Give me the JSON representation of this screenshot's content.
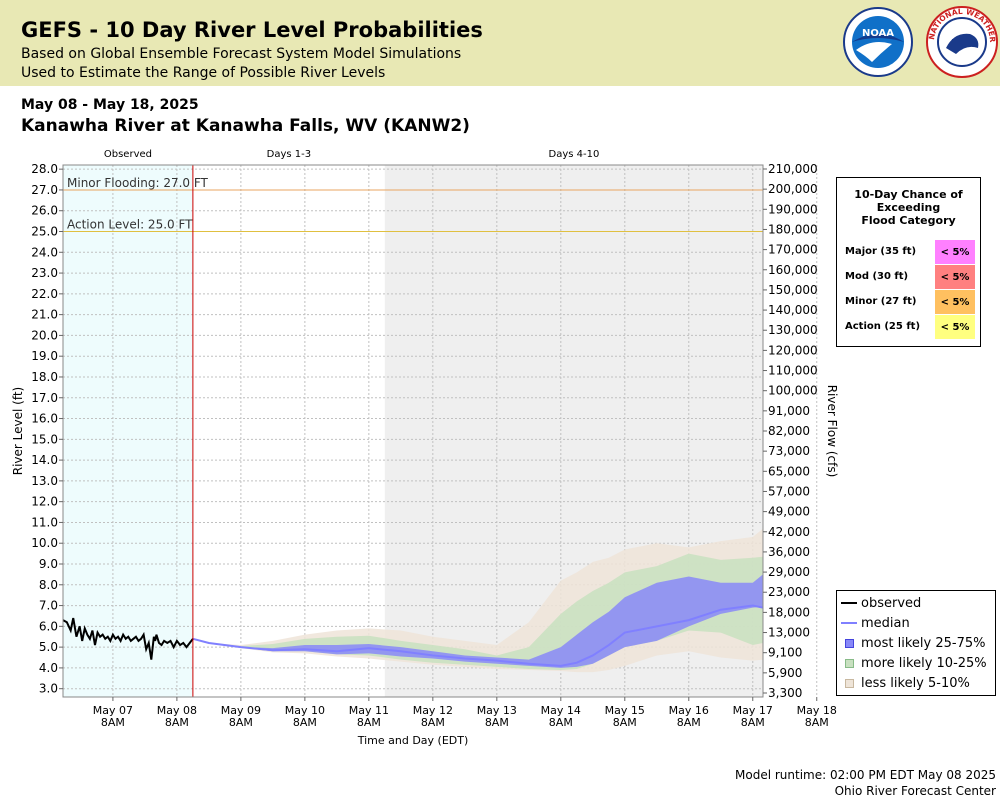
{
  "header": {
    "title": "GEFS - 10 Day River Level Probabilities",
    "subtitle1": "Based on Global Ensemble Forecast System Model Simulations",
    "subtitle2": "Used to Estimate the Range of Possible River Levels",
    "noaa_logo_text": "NOAA",
    "nws_logo_text": "NATIONAL WEATHER SERVICE"
  },
  "date_range": "May 08 - May 18, 2025",
  "station": "Kanawha River at Kanawha Falls, WV (KANW2)",
  "chart_data": {
    "type": "area",
    "title": "",
    "xlabel": "Time and Day (EDT)",
    "ylabel": "River Level (ft)",
    "y2label": "River Flow (cfs)",
    "ylim": [
      2.6,
      28.2
    ],
    "xlim": [
      -0.78,
      10.16
    ],
    "x_unit": "days since May 07 8AM",
    "y_ticks": [
      3.0,
      4.0,
      5.0,
      6.0,
      7.0,
      8.0,
      9.0,
      10.0,
      11.0,
      12.0,
      13.0,
      14.0,
      15.0,
      16.0,
      17.0,
      18.0,
      19.0,
      20.0,
      21.0,
      22.0,
      23.0,
      24.0,
      25.0,
      26.0,
      27.0,
      28.0
    ],
    "y_tick_labels": [
      "3.0",
      "4.0",
      "5.0",
      "6.0",
      "7.0",
      "8.0",
      "9.0",
      "10.0",
      "11.0",
      "12.0",
      "13.0",
      "14.0",
      "15.0",
      "16.0",
      "17.0",
      "18.0",
      "19.0",
      "20.0",
      "21.0",
      "22.0",
      "23.0",
      "24.0",
      "25.0",
      "26.0",
      "27.0",
      "28.0"
    ],
    "y2_ticks": [
      {
        "stage": 3.0,
        "label": "3,300"
      },
      {
        "stage": 4.0,
        "label": "5,900"
      },
      {
        "stage": 5.0,
        "label": "9,100"
      },
      {
        "stage": 6.0,
        "label": "13,000"
      },
      {
        "stage": 7.0,
        "label": "18,000"
      },
      {
        "stage": 8.0,
        "label": "23,000"
      },
      {
        "stage": 9.0,
        "label": "29,000"
      },
      {
        "stage": 10.0,
        "label": "36,000"
      },
      {
        "stage": 11.0,
        "label": "42,000"
      },
      {
        "stage": 12.0,
        "label": "49,000"
      },
      {
        "stage": 13.0,
        "label": "57,000"
      },
      {
        "stage": 14.0,
        "label": "65,000"
      },
      {
        "stage": 15.0,
        "label": "73,000"
      },
      {
        "stage": 16.0,
        "label": "82,000"
      },
      {
        "stage": 17.0,
        "label": "91,000"
      },
      {
        "stage": 18.0,
        "label": "100,000"
      },
      {
        "stage": 19.0,
        "label": "110,000"
      },
      {
        "stage": 20.0,
        "label": "120,000"
      },
      {
        "stage": 21.0,
        "label": "130,000"
      },
      {
        "stage": 22.0,
        "label": "140,000"
      },
      {
        "stage": 23.0,
        "label": "150,000"
      },
      {
        "stage": 24.0,
        "label": "160,000"
      },
      {
        "stage": 25.0,
        "label": "170,000"
      },
      {
        "stage": 26.0,
        "label": "180,000"
      },
      {
        "stage": 27.0,
        "label": "190,000"
      },
      {
        "stage": 28.0,
        "label": "200,000"
      },
      {
        "stage": 29.0,
        "label": "210,000"
      }
    ],
    "x_ticks": [
      {
        "day": 0,
        "line1": "May 07",
        "line2": "8AM"
      },
      {
        "day": 1,
        "line1": "May 08",
        "line2": "8AM"
      },
      {
        "day": 2,
        "line1": "May 09",
        "line2": "8AM"
      },
      {
        "day": 3,
        "line1": "May 10",
        "line2": "8AM"
      },
      {
        "day": 4,
        "line1": "May 11",
        "line2": "8AM"
      },
      {
        "day": 5,
        "line1": "May 12",
        "line2": "8AM"
      },
      {
        "day": 6,
        "line1": "May 13",
        "line2": "8AM"
      },
      {
        "day": 7,
        "line1": "May 14",
        "line2": "8AM"
      },
      {
        "day": 8,
        "line1": "May 15",
        "line2": "8AM"
      },
      {
        "day": 9,
        "line1": "May 16",
        "line2": "8AM"
      },
      {
        "day": 10,
        "line1": "May 17",
        "line2": "8AM"
      },
      {
        "day": 11,
        "line1": "May 18",
        "line2": "8AM"
      }
    ],
    "periods": [
      {
        "label": "Observed",
        "start": -0.78,
        "end": 1.25,
        "color": "#eefcfd"
      },
      {
        "label": "Days 1-3",
        "start": 1.25,
        "end": 4.25,
        "color": "#ffffff"
      },
      {
        "label": "Days 4-10",
        "start": 4.25,
        "end": 10.16,
        "color": "#efefef"
      }
    ],
    "forecast_start": 1.25,
    "thresholds": [
      {
        "label": "Minor Flooding: 27.0 FT",
        "value": 27.0,
        "color": "#e8a560"
      },
      {
        "label": "Action Level: 25.0 FT",
        "value": 25.0,
        "color": "#e0c040"
      }
    ],
    "observed": {
      "x": [
        -0.78,
        -0.72,
        -0.66,
        -0.62,
        -0.57,
        -0.52,
        -0.48,
        -0.44,
        -0.4,
        -0.36,
        -0.32,
        -0.28,
        -0.24,
        -0.2,
        -0.16,
        -0.12,
        -0.08,
        -0.04,
        0.0,
        0.04,
        0.08,
        0.12,
        0.16,
        0.2,
        0.24,
        0.28,
        0.32,
        0.36,
        0.4,
        0.44,
        0.48,
        0.52,
        0.56,
        0.6,
        0.64,
        0.66,
        0.68,
        0.72,
        0.76,
        0.8,
        0.85,
        0.9,
        0.95,
        1.0,
        1.05,
        1.1,
        1.15,
        1.2,
        1.25
      ],
      "y": [
        6.3,
        6.2,
        5.8,
        6.4,
        5.5,
        6.0,
        5.3,
        5.9,
        5.6,
        5.4,
        5.8,
        5.1,
        5.7,
        5.5,
        5.6,
        5.4,
        5.5,
        5.3,
        5.6,
        5.4,
        5.5,
        5.3,
        5.6,
        5.4,
        5.5,
        5.3,
        5.4,
        5.5,
        5.3,
        5.4,
        5.6,
        4.9,
        5.2,
        4.4,
        5.5,
        5.3,
        5.6,
        5.2,
        5.1,
        5.3,
        5.2,
        5.3,
        5.0,
        5.3,
        5.1,
        5.2,
        5.0,
        5.2,
        5.4
      ]
    },
    "x": [
      1.25,
      1.5,
      2.0,
      2.5,
      3.0,
      3.5,
      4.0,
      4.5,
      5.0,
      5.5,
      6.0,
      6.5,
      7.0,
      7.25,
      7.5,
      7.75,
      8.0,
      8.5,
      9.0,
      9.5,
      10.0,
      10.16
    ],
    "series": [
      {
        "name": "median",
        "color": "#8080ff",
        "values": [
          5.4,
          5.2,
          5.0,
          4.85,
          4.9,
          4.8,
          4.95,
          4.8,
          4.6,
          4.45,
          4.35,
          4.2,
          4.1,
          4.25,
          4.6,
          5.1,
          5.7,
          6.0,
          6.3,
          6.8,
          7.0,
          6.9
        ]
      },
      {
        "name": "less likely 5-10%",
        "color": "#eee4d8",
        "upper": [
          5.4,
          5.2,
          5.1,
          5.3,
          5.6,
          5.8,
          5.9,
          5.8,
          5.5,
          5.3,
          5.1,
          6.2,
          8.2,
          8.6,
          9.1,
          9.3,
          9.7,
          10.0,
          9.8,
          10.1,
          10.3,
          10.7
        ],
        "lower": [
          5.4,
          5.2,
          4.95,
          4.75,
          4.7,
          4.55,
          4.45,
          4.3,
          4.15,
          4.05,
          3.95,
          3.9,
          3.85,
          3.8,
          3.8,
          3.9,
          4.1,
          4.6,
          4.8,
          4.5,
          4.35,
          4.4
        ]
      },
      {
        "name": "more likely 10-25%",
        "color": "#c8e0c0",
        "upper": [
          5.4,
          5.2,
          5.05,
          5.15,
          5.4,
          5.5,
          5.55,
          5.3,
          5.1,
          4.9,
          4.6,
          5.0,
          6.6,
          7.2,
          7.7,
          8.1,
          8.6,
          8.9,
          9.5,
          9.2,
          9.3,
          9.35
        ],
        "lower": [
          5.4,
          5.2,
          4.98,
          4.8,
          4.8,
          4.65,
          4.6,
          4.4,
          4.25,
          4.15,
          4.05,
          3.95,
          3.9,
          3.95,
          4.2,
          4.6,
          5.0,
          5.3,
          5.8,
          5.7,
          5.1,
          5.2
        ]
      },
      {
        "name": "most likely 25-75%",
        "color": "#8888f8",
        "upper": [
          5.4,
          5.2,
          5.0,
          4.95,
          5.1,
          5.1,
          5.15,
          5.0,
          4.8,
          4.6,
          4.5,
          4.4,
          5.0,
          5.6,
          6.2,
          6.7,
          7.4,
          8.1,
          8.4,
          8.1,
          8.1,
          8.5
        ],
        "lower": [
          5.4,
          5.2,
          4.98,
          4.8,
          4.8,
          4.65,
          4.7,
          4.55,
          4.45,
          4.3,
          4.2,
          4.1,
          4.0,
          4.05,
          4.2,
          4.6,
          5.0,
          5.3,
          6.0,
          6.6,
          6.9,
          6.95
        ]
      }
    ],
    "legend": [
      {
        "label": "observed",
        "kind": "line",
        "color": "#000000"
      },
      {
        "label": "median",
        "kind": "line",
        "color": "#8080ff"
      },
      {
        "label": "most likely 25-75%",
        "kind": "square",
        "color": "#8888f8",
        "border": "#4444dd"
      },
      {
        "label": "more likely 10-25%",
        "kind": "square",
        "color": "#c8e0c0",
        "border": "#88bb88"
      },
      {
        "label": "less likely 5-10%",
        "kind": "square",
        "color": "#eee4d8",
        "border": "#c8b8a0"
      }
    ],
    "legend_placement": "bottom-right",
    "grid": true
  },
  "probabilities": {
    "title_lines": [
      "10-Day Chance of",
      "Exceeding",
      "Flood Category"
    ],
    "rows": [
      {
        "label": "Major (35 ft)",
        "value": "< 5%",
        "color": "#ff80ff"
      },
      {
        "label": "Mod (30 ft)",
        "value": "< 5%",
        "color": "#ff8080"
      },
      {
        "label": "Minor (27 ft)",
        "value": "< 5%",
        "color": "#ffc060"
      },
      {
        "label": "Action (25 ft)",
        "value": "< 5%",
        "color": "#ffff80"
      }
    ]
  },
  "footer": {
    "runtime": "Model runtime: 02:00 PM EDT May 08 2025",
    "center": "Ohio River Forecast Center"
  }
}
